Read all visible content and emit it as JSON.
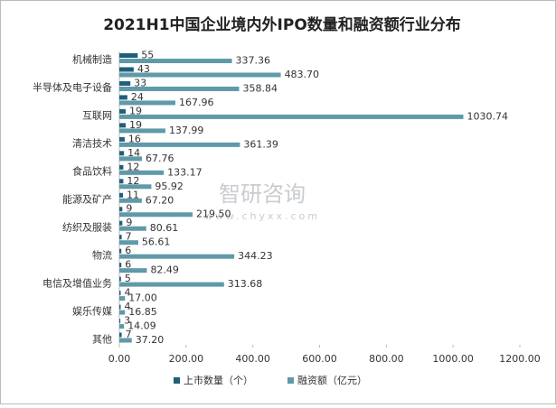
{
  "chart_data": {
    "type": "hbar",
    "title": "2021H1中国企业境内外IPO数量和融资额行业分布",
    "categories": [
      "机械制造",
      null,
      "半导体及电子设备",
      null,
      "互联网",
      null,
      "清洁技术",
      null,
      "食品饮料",
      null,
      "能源及矿产",
      null,
      "纺织及服装",
      null,
      "物流",
      null,
      "电信及增值业务",
      null,
      "娱乐传媒",
      null,
      "其他"
    ],
    "series": [
      {
        "name": "上市数量（个）",
        "color": "#1f5f7a",
        "values": [
          55,
          43,
          33,
          24,
          19,
          19,
          16,
          14,
          12,
          12,
          11,
          9,
          9,
          7,
          6,
          6,
          5,
          4,
          4,
          3,
          7
        ]
      },
      {
        "name": "融资额（亿元）",
        "color": "#5f9aa8",
        "values": [
          337.36,
          483.7,
          358.84,
          167.96,
          1030.74,
          137.99,
          361.39,
          67.76,
          133.17,
          95.92,
          67.2,
          219.5,
          80.61,
          56.61,
          344.23,
          82.49,
          313.68,
          17.0,
          16.85,
          14.09,
          37.2
        ],
        "value_labels": [
          "337.36",
          "483.70",
          "358.84",
          "167.96",
          "1030.74",
          "137.99",
          "361.39",
          "67.76",
          "133.17",
          "95.92",
          "67.20",
          "219.50",
          "80.61",
          "56.61",
          "344.23",
          "82.49",
          "313.68",
          "17.00",
          "16.85",
          "14.09",
          "37.20"
        ]
      }
    ],
    "xlim": [
      0,
      1200
    ],
    "xticks": [
      {
        "value": 0,
        "label": "0.00"
      },
      {
        "value": 200,
        "label": "200.00"
      },
      {
        "value": 400,
        "label": "400.00"
      },
      {
        "value": 600,
        "label": "600.00"
      },
      {
        "value": 800,
        "label": "800.00"
      },
      {
        "value": 1000,
        "label": "1000.00"
      },
      {
        "value": 1200,
        "label": "1200.00"
      }
    ],
    "legend": "bottom",
    "watermark": "智研咨询",
    "watermark_url": "www.chyxx.com"
  }
}
